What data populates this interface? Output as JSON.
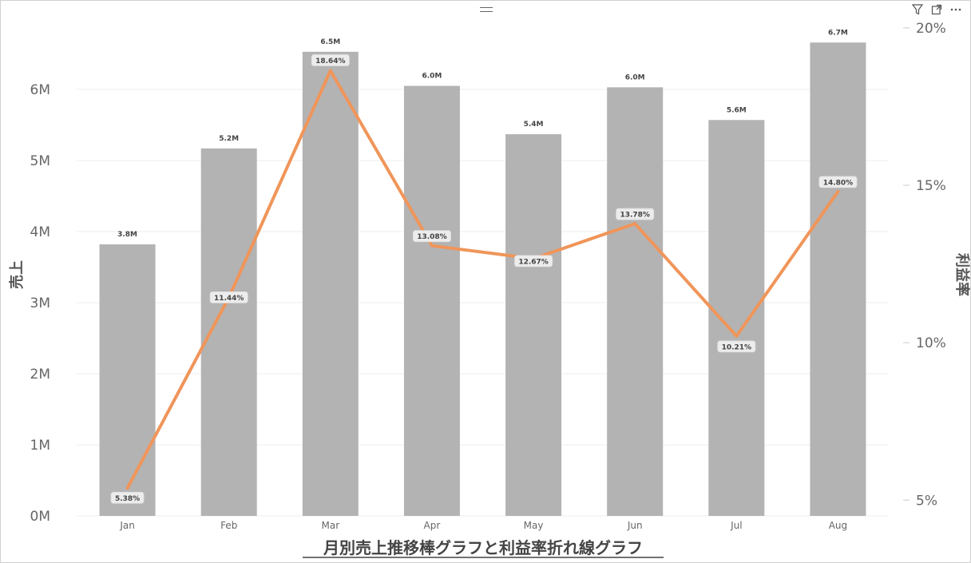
{
  "visual": {
    "toolbar": {
      "filter_icon": "filter-icon",
      "focus_icon": "focus-mode-icon",
      "more_icon": "more-options-icon"
    }
  },
  "chart_data": {
    "type": "bar+line",
    "title": "月別売上推移棒グラフと利益率折れ線グラフ",
    "categories": [
      "Jan",
      "Feb",
      "Mar",
      "Apr",
      "May",
      "Jun",
      "Jul",
      "Aug"
    ],
    "y_left": {
      "label": "売上",
      "ticks": [
        "0M",
        "1M",
        "2M",
        "3M",
        "4M",
        "5M",
        "6M"
      ],
      "range": [
        0,
        7000000
      ]
    },
    "y_right": {
      "label": "利益率",
      "ticks": [
        "5%",
        "10%",
        "15%",
        "20%"
      ],
      "range": [
        4.5,
        20.3
      ]
    },
    "series": [
      {
        "kind": "bar",
        "axis": "left",
        "color": "#b3b3b3",
        "values": [
          3820000,
          5170000,
          6530000,
          6050000,
          5370000,
          6030000,
          5570000,
          6660000
        ],
        "labels": [
          "3.8M",
          "5.2M",
          "6.5M",
          "6.0M",
          "5.4M",
          "6.0M",
          "5.6M",
          "6.7M"
        ]
      },
      {
        "kind": "line",
        "axis": "right",
        "color": "#f0955a",
        "values": [
          5.38,
          11.44,
          18.64,
          13.08,
          12.67,
          13.78,
          10.21,
          14.8
        ],
        "labels": [
          "5.38%",
          "11.44%",
          "18.64%",
          "13.08%",
          "12.67%",
          "13.78%",
          "10.21%",
          "14.80%"
        ]
      }
    ],
    "grid": true,
    "gridline_color": "#eeeeee"
  }
}
